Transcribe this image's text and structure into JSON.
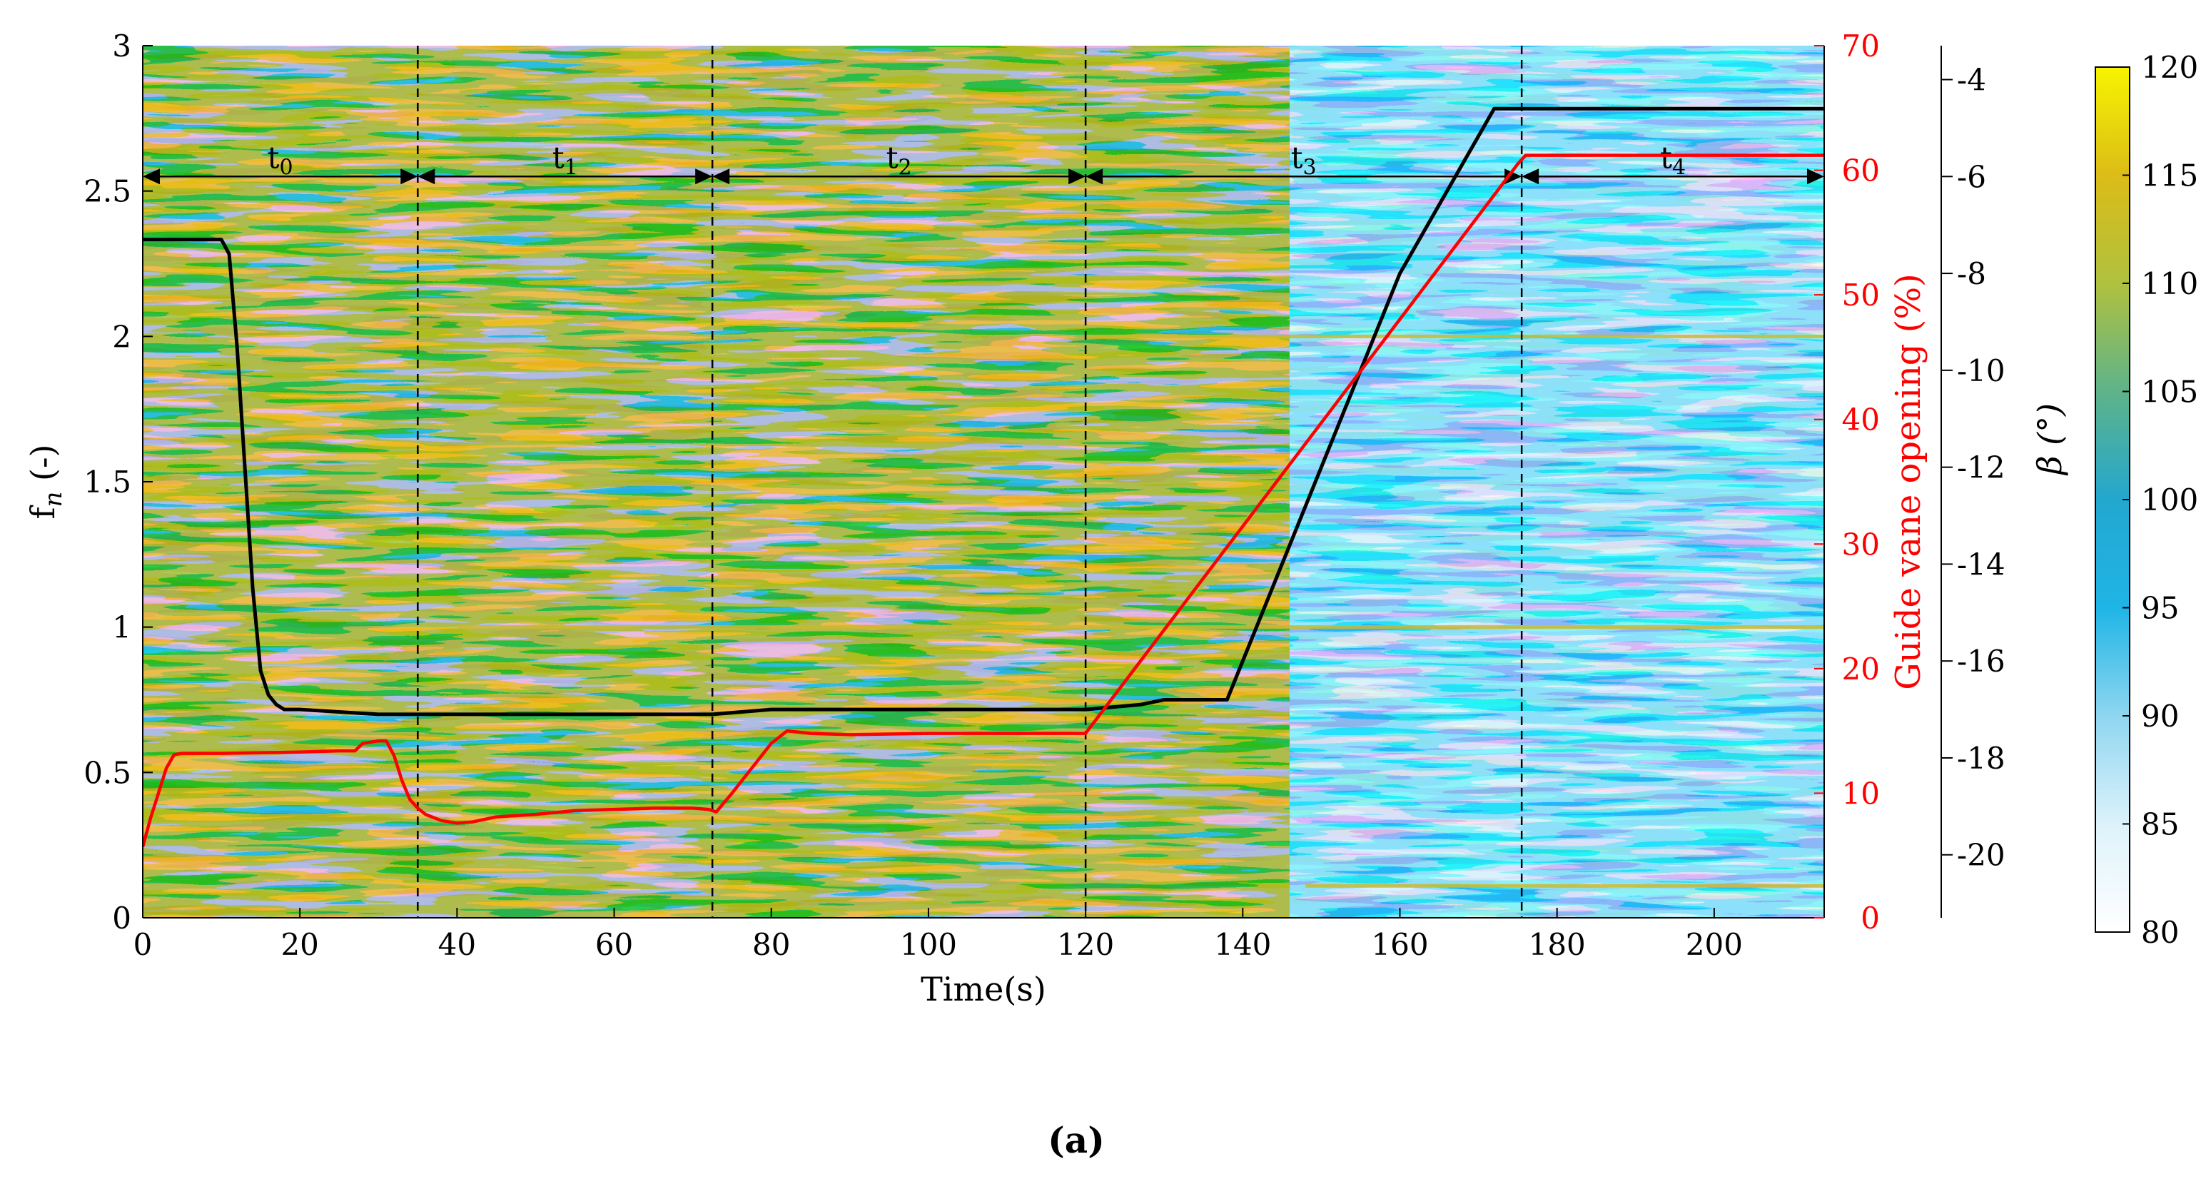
{
  "chart_data": {
    "type": "heatmap",
    "x_axis": {
      "label": "Time(s)",
      "range": [
        0,
        214
      ],
      "ticks": [
        0,
        20,
        40,
        60,
        80,
        100,
        120,
        140,
        160,
        180,
        200
      ]
    },
    "y_axis_left": {
      "label_main": "f",
      "label_sub": "n",
      "label_suffix": " (-)",
      "range": [
        0,
        3
      ],
      "ticks": [
        "0",
        "0.5",
        "1",
        "1.5",
        "2",
        "2.5",
        "3"
      ]
    },
    "y_axis_right_1": {
      "label": "Guide vane opening (%)",
      "color": "#ff0000",
      "range": [
        0,
        70
      ],
      "ticks": [
        0,
        10,
        20,
        30,
        40,
        50,
        60,
        70
      ]
    },
    "y_axis_right_2": {
      "label": "β (°)",
      "range": [
        -21.3,
        -3.3
      ],
      "ticks": [
        -20,
        -18,
        -16,
        -14,
        -12,
        -10,
        -8,
        -6,
        -4
      ]
    },
    "colorbar": {
      "range": [
        80,
        120
      ],
      "ticks": [
        80,
        85,
        90,
        95,
        100,
        105,
        110,
        115,
        120
      ],
      "colors": [
        "#ffffff",
        "#bfe9f7",
        "#1fb5e6",
        "#2fa8c8",
        "#5bb48e",
        "#a8c34a",
        "#d6bb1c",
        "#f5f000"
      ]
    },
    "phase_boundaries": [
      35,
      72.5,
      120,
      175.5
    ],
    "phases": [
      {
        "label": "t",
        "sub": "0",
        "start": 0,
        "end": 35
      },
      {
        "label": "t",
        "sub": "1",
        "start": 35,
        "end": 72.5
      },
      {
        "label": "t",
        "sub": "2",
        "start": 72.5,
        "end": 120
      },
      {
        "label": "t",
        "sub": "3",
        "start": 120,
        "end": 175.5
      },
      {
        "label": "t",
        "sub": "4",
        "start": 175.5,
        "end": 214
      }
    ],
    "arrow_level_fn": 2.55,
    "series": [
      {
        "axis": "beta",
        "color": "#000000",
        "x": [
          0,
          10,
          11,
          12,
          13,
          14,
          15,
          16,
          17,
          18,
          20,
          30,
          40,
          60,
          72.5,
          80,
          100,
          120,
          127,
          130,
          138,
          150,
          160,
          172,
          175,
          214
        ],
        "y": [
          -7.3,
          -7.3,
          -7.6,
          -9.5,
          -12,
          -14.5,
          -16.2,
          -16.7,
          -16.9,
          -17,
          -17,
          -17.1,
          -17.1,
          -17.1,
          -17.1,
          -17,
          -17,
          -17,
          -16.9,
          -16.8,
          -16.8,
          -12,
          -8,
          -4.6,
          -4.6,
          -4.6
        ]
      },
      {
        "axis": "guide_vane",
        "color": "#ff0000",
        "x": [
          0,
          1,
          2,
          3,
          4,
          5,
          10,
          20,
          25,
          27,
          28,
          30,
          31,
          32,
          33,
          34,
          35,
          36,
          38,
          40,
          42,
          45,
          50,
          55,
          60,
          65,
          70,
          72,
          73,
          75,
          80,
          82,
          85,
          90,
          100,
          110,
          120,
          175,
          176,
          214
        ],
        "y": [
          5.7,
          8,
          10,
          12,
          13.1,
          13.2,
          13.2,
          13.3,
          13.4,
          13.4,
          14,
          14.2,
          14.2,
          13,
          11,
          9.5,
          8.8,
          8.3,
          7.8,
          7.6,
          7.7,
          8.1,
          8.3,
          8.6,
          8.7,
          8.8,
          8.8,
          8.7,
          8.5,
          10,
          14,
          15,
          14.8,
          14.7,
          14.8,
          14.8,
          14.8,
          60.5,
          61.2,
          61.2
        ]
      }
    ],
    "harmonic_lines": [
      {
        "fn": 0.11,
        "x_start": 148,
        "x_end": 214
      },
      {
        "fn": 1.0,
        "x_start": 40,
        "x_end": 214
      },
      {
        "fn": 2.0,
        "x_start": 120,
        "x_end": 214
      }
    ],
    "caption": "(a)"
  }
}
